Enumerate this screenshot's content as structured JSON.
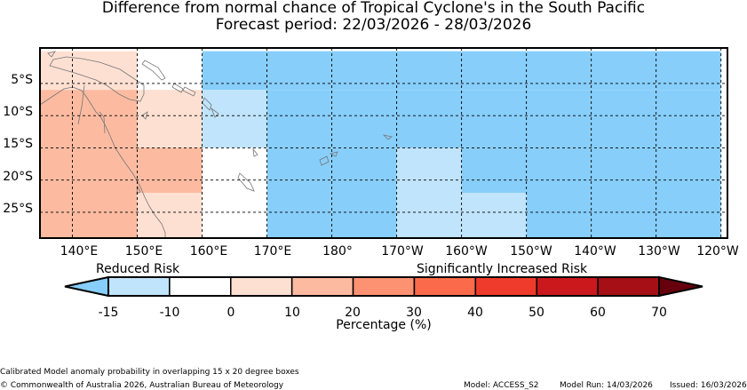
{
  "title": {
    "line1": "Difference from normal chance of Tropical Cyclone's in the South Pacific",
    "line2": "Forecast period: 22/03/2026 - 28/03/2026"
  },
  "map": {
    "lat_ticks": [
      "5°S",
      "10°S",
      "15°S",
      "20°S",
      "25°S"
    ],
    "lon_ticks": [
      "140°E",
      "150°E",
      "160°E",
      "170°E",
      "180°",
      "170°W",
      "160°W",
      "150°W",
      "140°W",
      "130°W",
      "120°W"
    ],
    "cells": [
      {
        "lon0": 135,
        "lon1": 150,
        "lat0": 0,
        "lat1": -6,
        "class": "0-10"
      },
      {
        "lon0": 150,
        "lon1": 160,
        "lat0": 0,
        "lat1": -6,
        "class": "-10-0"
      },
      {
        "lon0": 160,
        "lon1": 240,
        "lat0": 0,
        "lat1": -6,
        "class": "<-15"
      },
      {
        "lon0": 135,
        "lon1": 150,
        "lat0": -6,
        "lat1": -30,
        "class": "10-20"
      },
      {
        "lon0": 150,
        "lon1": 160,
        "lat0": -6,
        "lat1": -15,
        "class": "0-10"
      },
      {
        "lon0": 160,
        "lon1": 170,
        "lat0": -6,
        "lat1": -15,
        "class": "-15--10"
      },
      {
        "lon0": 170,
        "lon1": 240,
        "lat0": -6,
        "lat1": -15,
        "class": "<-15"
      },
      {
        "lon0": 150,
        "lon1": 160,
        "lat0": -15,
        "lat1": -22,
        "class": "10-20"
      },
      {
        "lon0": 160,
        "lon1": 170,
        "lat0": -15,
        "lat1": -22,
        "class": "-10-0"
      },
      {
        "lon0": 170,
        "lon1": 190,
        "lat0": -15,
        "lat1": -30,
        "class": "<-15"
      },
      {
        "lon0": 190,
        "lon1": 200,
        "lat0": -15,
        "lat1": -30,
        "class": "-15--10"
      },
      {
        "lon0": 200,
        "lon1": 210,
        "lat0": -15,
        "lat1": -22,
        "class": "<-15"
      },
      {
        "lon0": 210,
        "lon1": 240,
        "lat0": -15,
        "lat1": -30,
        "class": "<-15"
      },
      {
        "lon0": 150,
        "lon1": 160,
        "lat0": -22,
        "lat1": -30,
        "class": "0-10"
      },
      {
        "lon0": 160,
        "lon1": 170,
        "lat0": -22,
        "lat1": -30,
        "class": "-10-0"
      },
      {
        "lon0": 200,
        "lon1": 210,
        "lat0": -22,
        "lat1": -30,
        "class": "-15--10"
      }
    ]
  },
  "legend": {
    "reduced_label": "Reduced Risk",
    "increased_label": "Significantly Increased Risk",
    "ticks": [
      "-15",
      "-10",
      "0",
      "10",
      "20",
      "30",
      "40",
      "50",
      "60",
      "70"
    ],
    "xlabel": "Percentage (%)",
    "colors": [
      "#87cefa",
      "#bfe4fc",
      "#ffffff",
      "#fee0d2",
      "#fcbba1",
      "#fc9272",
      "#fb6a4a",
      "#ef3b2c",
      "#cb181d",
      "#a50f15",
      "#67000d"
    ]
  },
  "class_colors": {
    "<-15": "#87cefa",
    "-15--10": "#bfe4fc",
    "-10-0": "#ffffff",
    "0-10": "#fee0d2",
    "10-20": "#fcbba1"
  },
  "footer": {
    "note": "Calibrated Model anomaly probability in overlapping 15 x 20 degree boxes",
    "copyright": "© Commonwealth of Australia 2026, Australian Bureau of Meteorology",
    "model": "Model: ACCESS_S2",
    "model_run": "Model Run: 14/03/2026",
    "issued": "Issued: 16/03/2026"
  }
}
